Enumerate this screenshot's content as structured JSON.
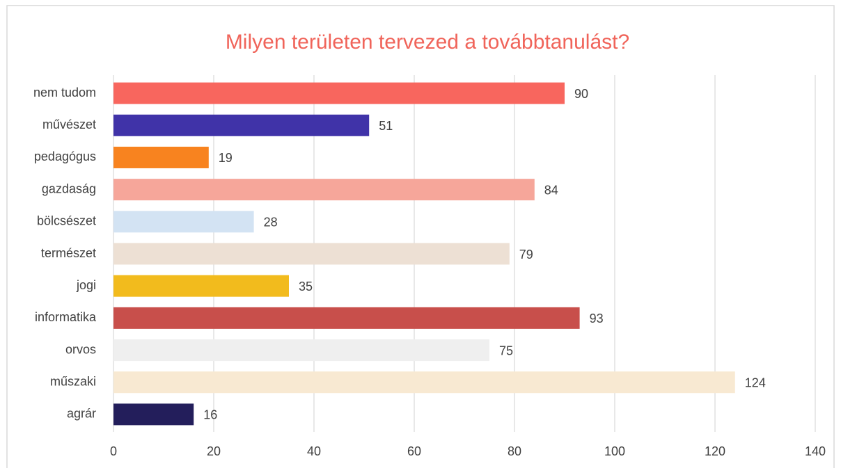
{
  "chart_data": {
    "type": "bar",
    "orientation": "horizontal",
    "title": "Milyen területen tervezed a továbbtanulást?",
    "categories": [
      "nem tudom",
      "művészet",
      "pedagógus",
      "gazdaság",
      "bölcsészet",
      "természet",
      "jogi",
      "informatika",
      "orvos",
      "műszaki",
      "agrár"
    ],
    "values": [
      90,
      51,
      19,
      84,
      28,
      79,
      35,
      93,
      75,
      124,
      16
    ],
    "colors": [
      "#f8665e",
      "#4033a8",
      "#f8831f",
      "#f6a69a",
      "#d3e3f3",
      "#ede0d4",
      "#f2bb1d",
      "#c84f4b",
      "#efefef",
      "#f8e9d2",
      "#231e5b"
    ],
    "xlim": [
      0,
      140
    ],
    "xticks": [
      0,
      20,
      40,
      60,
      80,
      100,
      120,
      140
    ],
    "grid": true
  }
}
